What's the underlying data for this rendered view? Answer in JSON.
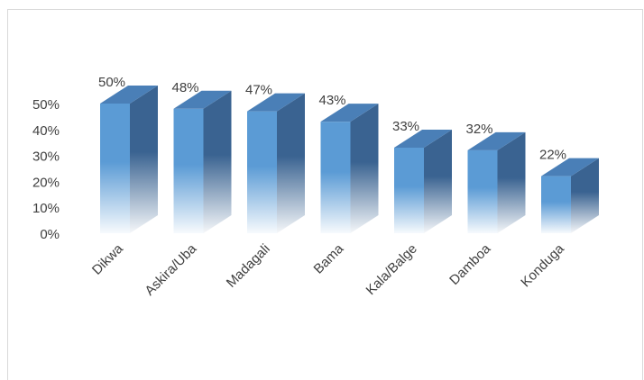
{
  "chart_data": {
    "type": "bar",
    "style": "3d-column",
    "categories": [
      "Dikwa",
      "Askira/Uba",
      "Madagali",
      "Bama",
      "Kala/Balge",
      "Damboa",
      "Konduga"
    ],
    "values": [
      50,
      48,
      47,
      43,
      33,
      32,
      22
    ],
    "data_labels": [
      "50%",
      "48%",
      "47%",
      "43%",
      "33%",
      "32%",
      "22%"
    ],
    "y_ticks": [
      "0%",
      "10%",
      "20%",
      "30%",
      "40%",
      "50%"
    ],
    "ylim": [
      0,
      50
    ],
    "title": "",
    "xlabel": "",
    "ylabel": "",
    "grid": false,
    "legend": "none",
    "colors": {
      "front": "#5b9bd5",
      "side": "#3a6391",
      "top": "#4a7fb7",
      "text": "#404040",
      "frame": "#d9d9d9"
    }
  }
}
